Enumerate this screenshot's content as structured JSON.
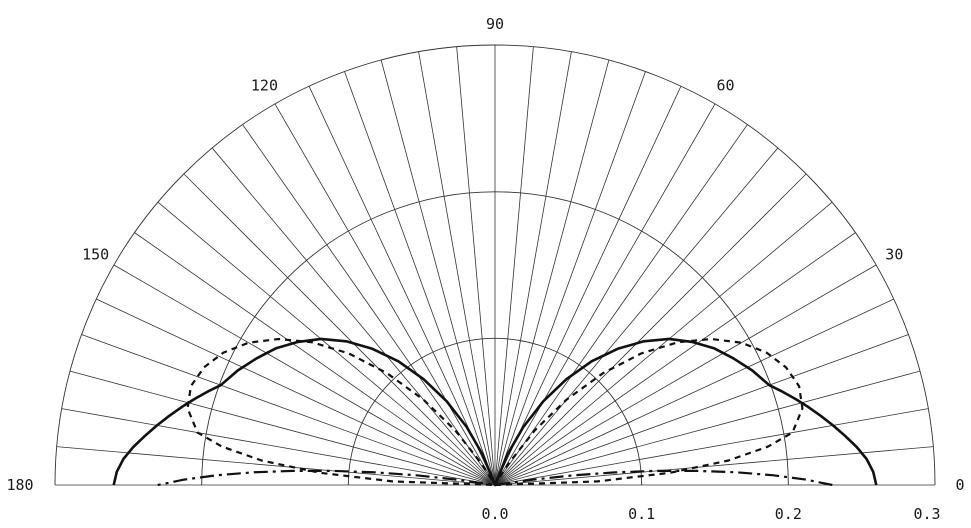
{
  "chart_data": {
    "type": "line",
    "projection": "polar",
    "theta_range_deg": [
      0,
      180
    ],
    "r_range": [
      0.0,
      0.3
    ],
    "r_gridlines": [
      0.1,
      0.2,
      0.3
    ],
    "spoke_step_deg": 5,
    "angle_tick_labels": [
      "0",
      "30",
      "60",
      "90",
      "120",
      "150",
      "180"
    ],
    "radius_tick_labels": [
      "0.0",
      "0.1",
      "0.2",
      "0.3"
    ],
    "series": [
      {
        "style": "solid",
        "color": "#111111",
        "points": [
          [
            0,
            0.26
          ],
          [
            2,
            0.258
          ],
          [
            4,
            0.254
          ],
          [
            6,
            0.248
          ],
          [
            8,
            0.241
          ],
          [
            10,
            0.234
          ],
          [
            12,
            0.227
          ],
          [
            14,
            0.22
          ],
          [
            16,
            0.213
          ],
          [
            18,
            0.206
          ],
          [
            20,
            0.199
          ],
          [
            24,
            0.192
          ],
          [
            28,
            0.184
          ],
          [
            32,
            0.176
          ],
          [
            36,
            0.166
          ],
          [
            40,
            0.155
          ],
          [
            44,
            0.141
          ],
          [
            48,
            0.125
          ],
          [
            52,
            0.107
          ],
          [
            56,
            0.087
          ],
          [
            60,
            0.066
          ],
          [
            64,
            0.044
          ],
          [
            68,
            0.022
          ],
          [
            72,
            0.0
          ],
          [
            108,
            0.0
          ],
          [
            112,
            0.022
          ],
          [
            116,
            0.044
          ],
          [
            120,
            0.066
          ],
          [
            124,
            0.087
          ],
          [
            128,
            0.107
          ],
          [
            132,
            0.125
          ],
          [
            136,
            0.141
          ],
          [
            140,
            0.155
          ],
          [
            144,
            0.166
          ],
          [
            148,
            0.176
          ],
          [
            152,
            0.184
          ],
          [
            156,
            0.192
          ],
          [
            160,
            0.199
          ],
          [
            162,
            0.206
          ],
          [
            164,
            0.213
          ],
          [
            166,
            0.22
          ],
          [
            168,
            0.227
          ],
          [
            170,
            0.234
          ],
          [
            172,
            0.241
          ],
          [
            174,
            0.248
          ],
          [
            176,
            0.254
          ],
          [
            178,
            0.258
          ],
          [
            180,
            0.26
          ]
        ]
      },
      {
        "style": "dashed",
        "color": "#111111",
        "points": [
          [
            0,
            0.0
          ],
          [
            2,
            0.07
          ],
          [
            4,
            0.12
          ],
          [
            6,
            0.16
          ],
          [
            8,
            0.188
          ],
          [
            10,
            0.206
          ],
          [
            14,
            0.216
          ],
          [
            18,
            0.218
          ],
          [
            22,
            0.214
          ],
          [
            26,
            0.206
          ],
          [
            30,
            0.194
          ],
          [
            34,
            0.178
          ],
          [
            38,
            0.158
          ],
          [
            42,
            0.134
          ],
          [
            46,
            0.106
          ],
          [
            50,
            0.076
          ],
          [
            54,
            0.046
          ],
          [
            58,
            0.016
          ],
          [
            60,
            0.0
          ],
          [
            120,
            0.0
          ],
          [
            122,
            0.016
          ],
          [
            126,
            0.046
          ],
          [
            130,
            0.076
          ],
          [
            134,
            0.106
          ],
          [
            138,
            0.134
          ],
          [
            142,
            0.158
          ],
          [
            146,
            0.178
          ],
          [
            150,
            0.194
          ],
          [
            154,
            0.206
          ],
          [
            158,
            0.214
          ],
          [
            162,
            0.218
          ],
          [
            166,
            0.216
          ],
          [
            170,
            0.206
          ],
          [
            172,
            0.188
          ],
          [
            174,
            0.16
          ],
          [
            176,
            0.12
          ],
          [
            178,
            0.07
          ],
          [
            180,
            0.0
          ]
        ]
      },
      {
        "style": "dashdot",
        "color": "#111111",
        "points": [
          [
            0,
            0.23
          ],
          [
            1,
            0.212
          ],
          [
            2,
            0.19
          ],
          [
            3,
            0.165
          ],
          [
            4,
            0.138
          ],
          [
            5,
            0.11
          ],
          [
            6,
            0.082
          ],
          [
            7,
            0.054
          ],
          [
            8,
            0.026
          ],
          [
            9,
            0.0
          ],
          [
            171,
            0.0
          ],
          [
            172,
            0.026
          ],
          [
            173,
            0.054
          ],
          [
            174,
            0.082
          ],
          [
            175,
            0.11
          ],
          [
            176,
            0.138
          ],
          [
            177,
            0.165
          ],
          [
            178,
            0.19
          ],
          [
            179,
            0.212
          ],
          [
            180,
            0.23
          ]
        ]
      }
    ]
  }
}
